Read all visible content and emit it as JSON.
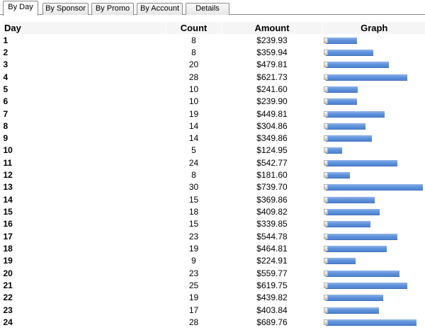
{
  "tabs": [
    {
      "label": "By Day",
      "active": true
    },
    {
      "label": "By Sponsor",
      "active": false
    },
    {
      "label": "By Promo",
      "active": false
    },
    {
      "label": "By Account",
      "active": false
    },
    {
      "label": "Details",
      "active": false
    }
  ],
  "table": {
    "headers": {
      "day": "Day",
      "count": "Count",
      "amount": "Amount",
      "graph": "Graph"
    },
    "rows": [
      {
        "day": "1",
        "count": "8",
        "amount": "$239.93",
        "value": 239.93
      },
      {
        "day": "2",
        "count": "8",
        "amount": "$359.94",
        "value": 359.94
      },
      {
        "day": "3",
        "count": "20",
        "amount": "$479.81",
        "value": 479.81
      },
      {
        "day": "4",
        "count": "28",
        "amount": "$621.73",
        "value": 621.73
      },
      {
        "day": "5",
        "count": "10",
        "amount": "$241.60",
        "value": 241.6
      },
      {
        "day": "6",
        "count": "10",
        "amount": "$239.90",
        "value": 239.9
      },
      {
        "day": "7",
        "count": "19",
        "amount": "$449.81",
        "value": 449.81
      },
      {
        "day": "8",
        "count": "14",
        "amount": "$304.86",
        "value": 304.86
      },
      {
        "day": "9",
        "count": "14",
        "amount": "$349.86",
        "value": 349.86
      },
      {
        "day": "10",
        "count": "5",
        "amount": "$124.95",
        "value": 124.95
      },
      {
        "day": "11",
        "count": "24",
        "amount": "$542.77",
        "value": 542.77
      },
      {
        "day": "12",
        "count": "8",
        "amount": "$181.60",
        "value": 181.6
      },
      {
        "day": "13",
        "count": "30",
        "amount": "$739.70",
        "value": 739.7
      },
      {
        "day": "14",
        "count": "15",
        "amount": "$369.86",
        "value": 369.86
      },
      {
        "day": "15",
        "count": "18",
        "amount": "$409.82",
        "value": 409.82
      },
      {
        "day": "16",
        "count": "15",
        "amount": "$339.85",
        "value": 339.85
      },
      {
        "day": "17",
        "count": "23",
        "amount": "$544.78",
        "value": 544.78
      },
      {
        "day": "18",
        "count": "19",
        "amount": "$464.81",
        "value": 464.81
      },
      {
        "day": "19",
        "count": "9",
        "amount": "$224.91",
        "value": 224.91
      },
      {
        "day": "20",
        "count": "23",
        "amount": "$559.77",
        "value": 559.77
      },
      {
        "day": "21",
        "count": "25",
        "amount": "$619.75",
        "value": 619.75
      },
      {
        "day": "22",
        "count": "19",
        "amount": "$439.82",
        "value": 439.82
      },
      {
        "day": "23",
        "count": "17",
        "amount": "$403.84",
        "value": 403.84
      },
      {
        "day": "24",
        "count": "28",
        "amount": "$689.76",
        "value": 689.76
      }
    ]
  },
  "colors": {
    "bar": "#5b8fd8",
    "header_bg": "#f5f5f5"
  }
}
